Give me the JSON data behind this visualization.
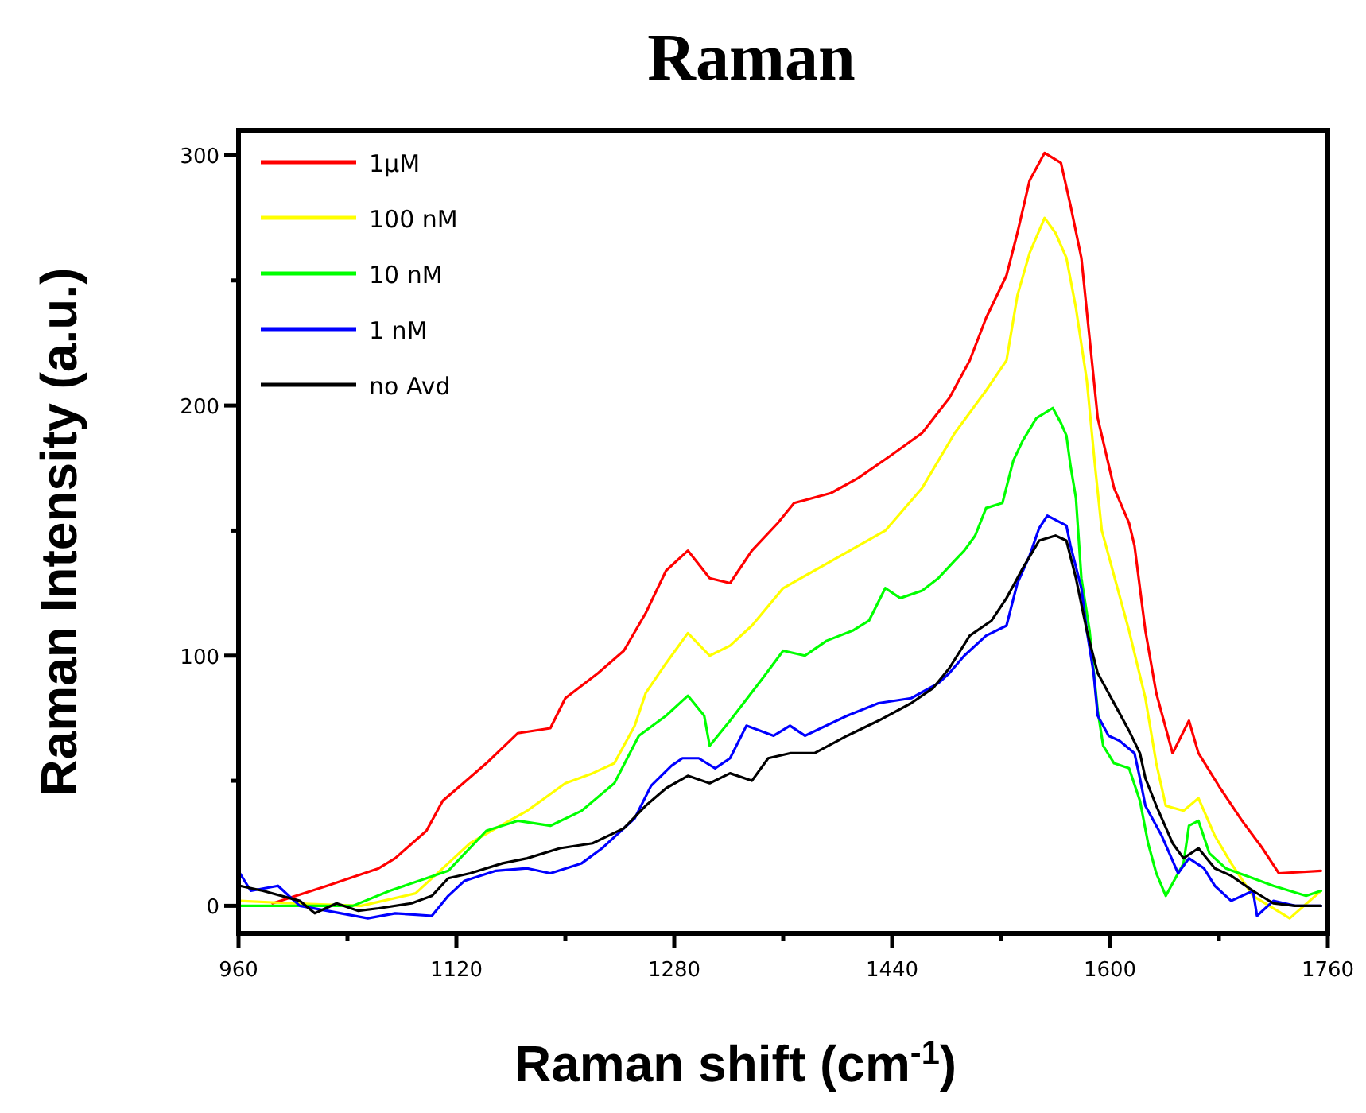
{
  "chart_data": {
    "type": "line",
    "title": "Raman",
    "xlabel": "Raman shift (cm$^{-1}$)",
    "ylabel": "Raman Intensity (a.u.)",
    "xlim": [
      960,
      1760
    ],
    "ylim": [
      -11,
      310
    ],
    "xticks": [
      960,
      {
        "value": 1040,
        "label": null
      },
      1120,
      {
        "value": 1200,
        "label": null
      },
      1280,
      {
        "value": 1360,
        "label": null
      },
      1440,
      {
        "value": 1520,
        "label": null
      },
      1600,
      {
        "value": 1680,
        "label": null
      },
      1760
    ],
    "yticks": [
      0,
      {
        "value": 50,
        "label": null
      },
      100,
      {
        "value": 150,
        "label": null
      },
      200,
      {
        "value": 250,
        "label": null
      },
      300
    ],
    "grid": false,
    "legend": "top left",
    "marker": "none",
    "line_style": "solid",
    "series": [
      {
        "name": "1µM",
        "color": "#ff0000",
        "x": [
          985,
          1025,
          1063,
          1075,
          1098,
          1110,
          1125,
          1142,
          1165,
          1189,
          1200,
          1224,
          1243,
          1259,
          1274,
          1290,
          1306,
          1321,
          1337,
          1356,
          1368,
          1395,
          1415,
          1439,
          1462,
          1482,
          1497,
          1509,
          1524,
          1532,
          1541,
          1552,
          1564,
          1571,
          1579,
          1585,
          1591,
          1603,
          1614,
          1618,
          1626,
          1634,
          1646,
          1658,
          1665,
          1681,
          1697,
          1712,
          1724,
          1755
        ],
        "values": [
          1,
          8,
          15,
          19,
          30,
          42,
          49,
          57,
          69,
          71,
          83,
          93,
          102,
          117,
          134,
          142,
          131,
          129,
          142,
          153,
          161,
          165,
          171,
          180,
          189,
          203,
          218,
          235,
          252,
          269,
          290,
          301,
          297,
          280,
          259,
          227,
          195,
          167,
          153,
          144,
          110,
          85,
          61,
          74,
          61,
          47,
          34,
          23,
          13,
          14
        ]
      },
      {
        "name": "100 nM",
        "color": "#ffff00",
        "x": [
          961,
          1000,
          1050,
          1090,
          1118,
          1130,
          1149,
          1172,
          1200,
          1220,
          1236,
          1251,
          1259,
          1274,
          1290,
          1306,
          1321,
          1337,
          1360,
          1435,
          1462,
          1486,
          1509,
          1524,
          1532,
          1541,
          1552,
          1560,
          1568,
          1575,
          1583,
          1589,
          1594,
          1599,
          1614,
          1626,
          1634,
          1641,
          1654,
          1665,
          1677,
          1689,
          1705,
          1732,
          1755
        ],
        "values": [
          2,
          1,
          0,
          5,
          19,
          25,
          31,
          38,
          49,
          53,
          57,
          72,
          85,
          97,
          109,
          100,
          104,
          112,
          127,
          150,
          167,
          189,
          206,
          218,
          244,
          261,
          275,
          269,
          259,
          239,
          210,
          176,
          150,
          140,
          110,
          83,
          57,
          40,
          38,
          43,
          28,
          17,
          4,
          -5,
          6
        ]
      },
      {
        "name": "10 nM",
        "color": "#00ff00",
        "x": [
          961,
          1005,
          1044,
          1071,
          1098,
          1114,
          1142,
          1165,
          1189,
          1212,
          1236,
          1254,
          1274,
          1290,
          1302,
          1306,
          1321,
          1345,
          1360,
          1376,
          1392,
          1411,
          1423,
          1435,
          1446,
          1462,
          1474,
          1486,
          1493,
          1501,
          1509,
          1521,
          1529,
          1536,
          1546,
          1558,
          1564,
          1568,
          1571,
          1575,
          1579,
          1585,
          1591,
          1595,
          1603,
          1614,
          1622,
          1628,
          1634,
          1641,
          1654,
          1658,
          1665,
          1673,
          1685,
          1705,
          1720,
          1744,
          1755
        ],
        "values": [
          0,
          0,
          0,
          6,
          11,
          14,
          30,
          34,
          32,
          38,
          49,
          68,
          76,
          84,
          76,
          64,
          74,
          91,
          102,
          100,
          106,
          110,
          114,
          127,
          123,
          126,
          131,
          138,
          142,
          148,
          159,
          161,
          178,
          186,
          195,
          199,
          193,
          188,
          176,
          163,
          131,
          110,
          78,
          64,
          57,
          55,
          42,
          25,
          13,
          4,
          17,
          32,
          34,
          21,
          15,
          11,
          8,
          4,
          6
        ]
      },
      {
        "name": "1 nM",
        "color": "#0000ff",
        "x": [
          961,
          969,
          989,
          1005,
          1025,
          1055,
          1075,
          1102,
          1114,
          1126,
          1149,
          1172,
          1189,
          1212,
          1227,
          1251,
          1263,
          1278,
          1286,
          1298,
          1310,
          1321,
          1333,
          1353,
          1365,
          1376,
          1407,
          1430,
          1454,
          1474,
          1482,
          1493,
          1509,
          1524,
          1532,
          1541,
          1548,
          1554,
          1568,
          1571,
          1579,
          1583,
          1588,
          1591,
          1599,
          1607,
          1618,
          1622,
          1626,
          1638,
          1650,
          1658,
          1669,
          1677,
          1689,
          1705,
          1708,
          1720,
          1736,
          1755
        ],
        "values": [
          13,
          6,
          8,
          0,
          -2,
          -5,
          -3,
          -4,
          4,
          10,
          14,
          15,
          13,
          17,
          23,
          35,
          48,
          56,
          59,
          59,
          55,
          59,
          72,
          68,
          72,
          68,
          76,
          81,
          83,
          89,
          93,
          100,
          108,
          112,
          129,
          140,
          151,
          156,
          152,
          144,
          127,
          110,
          93,
          76,
          68,
          66,
          61,
          51,
          40,
          28,
          13,
          19,
          15,
          8,
          2,
          6,
          -4,
          2,
          0,
          0
        ]
      },
      {
        "name": "no Avd",
        "color": "#000000",
        "x": [
          961,
          978,
          1005,
          1016,
          1032,
          1048,
          1063,
          1087,
          1102,
          1114,
          1130,
          1154,
          1172,
          1196,
          1220,
          1243,
          1259,
          1274,
          1290,
          1306,
          1321,
          1337,
          1349,
          1365,
          1383,
          1407,
          1430,
          1454,
          1470,
          1482,
          1497,
          1513,
          1524,
          1536,
          1548,
          1560,
          1568,
          1575,
          1583,
          1591,
          1599,
          1607,
          1614,
          1622,
          1626,
          1634,
          1646,
          1654,
          1665,
          1677,
          1689,
          1705,
          1720,
          1736,
          1755
        ],
        "values": [
          8,
          6,
          2,
          -3,
          1,
          -2,
          -1,
          1,
          4,
          11,
          13,
          17,
          19,
          23,
          25,
          31,
          40,
          47,
          52,
          49,
          53,
          50,
          59,
          61,
          61,
          68,
          74,
          81,
          87,
          95,
          108,
          114,
          123,
          135,
          146,
          148,
          146,
          131,
          110,
          93,
          85,
          77,
          70,
          61,
          51,
          40,
          25,
          19,
          23,
          15,
          12,
          6,
          1,
          0,
          0
        ]
      }
    ]
  }
}
